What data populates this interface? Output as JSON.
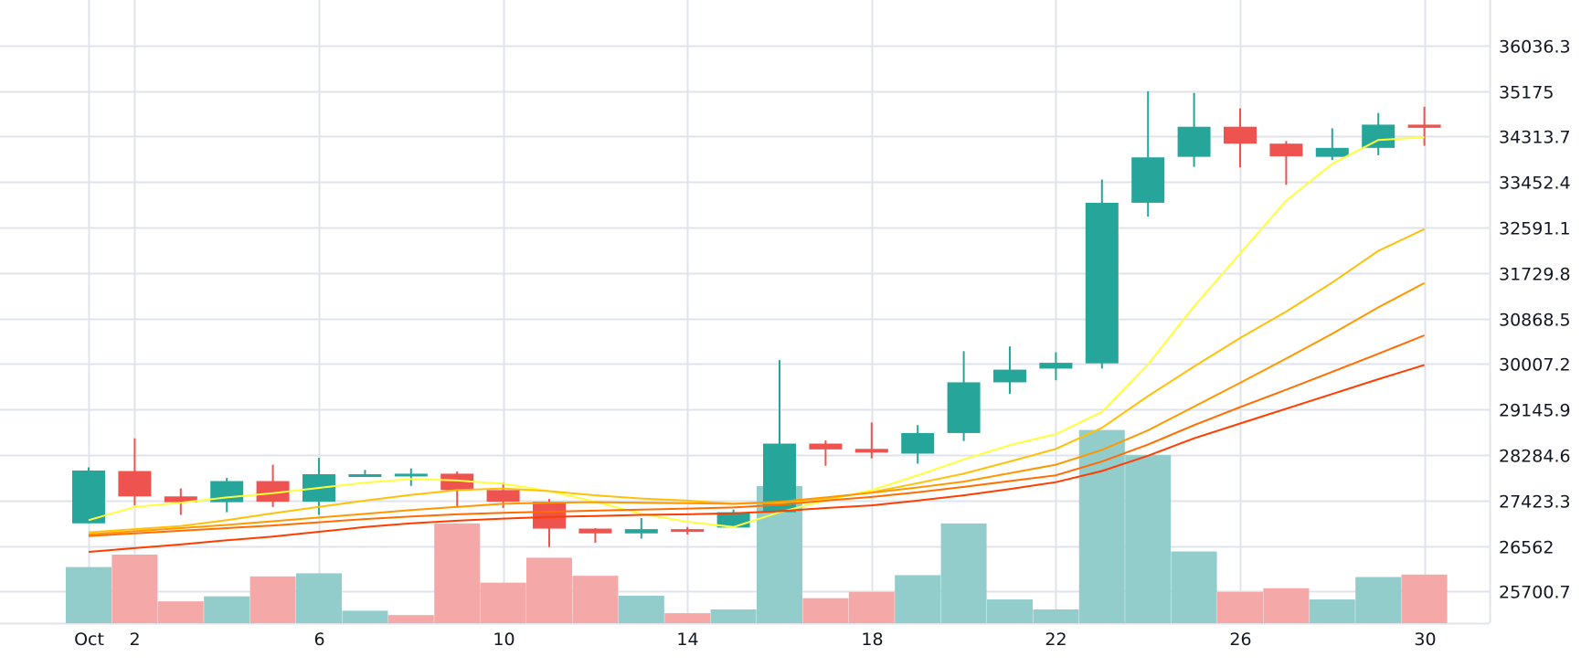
{
  "chart_data": {
    "type": "candlestick",
    "title": "",
    "x_axis": {
      "tick_labels": [
        {
          "day": 1,
          "label": "Oct"
        },
        {
          "day": 2,
          "label": "2"
        },
        {
          "day": 6,
          "label": "6"
        },
        {
          "day": 10,
          "label": "10"
        },
        {
          "day": 14,
          "label": "14"
        },
        {
          "day": 18,
          "label": "18"
        },
        {
          "day": 22,
          "label": "22"
        },
        {
          "day": 26,
          "label": "26"
        },
        {
          "day": 30,
          "label": "30"
        }
      ],
      "range": [
        1,
        30
      ]
    },
    "y_axis": {
      "tick_labels": [
        "36036.3",
        "35175",
        "34313.7",
        "33452.4",
        "32591.1",
        "31729.8",
        "30868.5",
        "30007.2",
        "29145.9",
        "28284.6",
        "27423.3",
        "26562",
        "25700.7"
      ],
      "range": [
        25100,
        36900
      ],
      "position": "right"
    },
    "grid": true,
    "colors": {
      "up": "#26a69a",
      "down": "#ef5350",
      "volume_up": "#92cccb",
      "volume_down": "#f4a9a8",
      "grid": "#e0e3eb",
      "ma": [
        "#ffff3b",
        "#ffc107",
        "#ff9800",
        "#ff6d00",
        "#ff3d00"
      ]
    },
    "candles": [
      {
        "day": 1,
        "open": 26990,
        "high": 28050,
        "low": 26990,
        "close": 27990
      },
      {
        "day": 2,
        "open": 27980,
        "high": 28600,
        "low": 27330,
        "close": 27500
      },
      {
        "day": 3,
        "open": 27500,
        "high": 27650,
        "low": 27150,
        "close": 27390
      },
      {
        "day": 4,
        "open": 27390,
        "high": 27850,
        "low": 27200,
        "close": 27790
      },
      {
        "day": 5,
        "open": 27790,
        "high": 28100,
        "low": 27300,
        "close": 27400
      },
      {
        "day": 6,
        "open": 27400,
        "high": 28230,
        "low": 27150,
        "close": 27920
      },
      {
        "day": 7,
        "open": 27920,
        "high": 28000,
        "low": 27880,
        "close": 27920
      },
      {
        "day": 8,
        "open": 27930,
        "high": 28030,
        "low": 27700,
        "close": 27930
      },
      {
        "day": 9,
        "open": 27930,
        "high": 27970,
        "low": 27300,
        "close": 27620
      },
      {
        "day": 10,
        "open": 27620,
        "high": 27760,
        "low": 27280,
        "close": 27400
      },
      {
        "day": 11,
        "open": 27400,
        "high": 27450,
        "low": 26540,
        "close": 26890
      },
      {
        "day": 12,
        "open": 26890,
        "high": 26900,
        "low": 26620,
        "close": 26800
      },
      {
        "day": 13,
        "open": 26800,
        "high": 27090,
        "low": 26700,
        "close": 26880
      },
      {
        "day": 14,
        "open": 26880,
        "high": 26920,
        "low": 26780,
        "close": 26860
      },
      {
        "day": 15,
        "open": 26910,
        "high": 27250,
        "low": 26910,
        "close": 27200
      },
      {
        "day": 16,
        "open": 27200,
        "high": 30080,
        "low": 27200,
        "close": 28500
      },
      {
        "day": 17,
        "open": 28500,
        "high": 28560,
        "low": 28080,
        "close": 28390
      },
      {
        "day": 18,
        "open": 28400,
        "high": 28900,
        "low": 28220,
        "close": 28330
      },
      {
        "day": 19,
        "open": 28310,
        "high": 28850,
        "low": 28120,
        "close": 28700
      },
      {
        "day": 20,
        "open": 28700,
        "high": 30250,
        "low": 28550,
        "close": 29660
      },
      {
        "day": 21,
        "open": 29660,
        "high": 30340,
        "low": 29440,
        "close": 29900
      },
      {
        "day": 22,
        "open": 29920,
        "high": 30230,
        "low": 29700,
        "close": 30030
      },
      {
        "day": 23,
        "open": 30020,
        "high": 33500,
        "low": 29920,
        "close": 33060
      },
      {
        "day": 24,
        "open": 33060,
        "high": 35170,
        "low": 32800,
        "close": 33920
      },
      {
        "day": 25,
        "open": 33930,
        "high": 35140,
        "low": 33740,
        "close": 34500
      },
      {
        "day": 26,
        "open": 34500,
        "high": 34850,
        "low": 33730,
        "close": 34180
      },
      {
        "day": 27,
        "open": 34180,
        "high": 34230,
        "low": 33400,
        "close": 33940
      },
      {
        "day": 28,
        "open": 33930,
        "high": 34470,
        "low": 33870,
        "close": 34100
      },
      {
        "day": 29,
        "open": 34100,
        "high": 34760,
        "low": 33960,
        "close": 34540
      },
      {
        "day": 30,
        "open": 34540,
        "high": 34880,
        "low": 34140,
        "close": 34480
      }
    ],
    "volume_bars": [
      {
        "day": 1,
        "direction": "up",
        "level": 0.09
      },
      {
        "day": 2,
        "direction": "down",
        "level": 0.11
      },
      {
        "day": 3,
        "direction": "down",
        "level": 0.035
      },
      {
        "day": 4,
        "direction": "up",
        "level": 0.043
      },
      {
        "day": 5,
        "direction": "down",
        "level": 0.075
      },
      {
        "day": 6,
        "direction": "up",
        "level": 0.08
      },
      {
        "day": 7,
        "direction": "up",
        "level": 0.02
      },
      {
        "day": 8,
        "direction": "down",
        "level": 0.013
      },
      {
        "day": 9,
        "direction": "down",
        "level": 0.16
      },
      {
        "day": 10,
        "direction": "down",
        "level": 0.065
      },
      {
        "day": 11,
        "direction": "down",
        "level": 0.105
      },
      {
        "day": 12,
        "direction": "down",
        "level": 0.076
      },
      {
        "day": 13,
        "direction": "up",
        "level": 0.044
      },
      {
        "day": 14,
        "direction": "down",
        "level": 0.016
      },
      {
        "day": 15,
        "direction": "up",
        "level": 0.022
      },
      {
        "day": 16,
        "direction": "up",
        "level": 0.22
      },
      {
        "day": 17,
        "direction": "down",
        "level": 0.04
      },
      {
        "day": 18,
        "direction": "down",
        "level": 0.05
      },
      {
        "day": 19,
        "direction": "up",
        "level": 0.077
      },
      {
        "day": 20,
        "direction": "up",
        "level": 0.16
      },
      {
        "day": 21,
        "direction": "up",
        "level": 0.038
      },
      {
        "day": 22,
        "direction": "up",
        "level": 0.022
      },
      {
        "day": 23,
        "direction": "up",
        "level": 0.31
      },
      {
        "day": 24,
        "direction": "up",
        "level": 0.27
      },
      {
        "day": 25,
        "direction": "up",
        "level": 0.115
      },
      {
        "day": 26,
        "direction": "down",
        "level": 0.05
      },
      {
        "day": 27,
        "direction": "down",
        "level": 0.056
      },
      {
        "day": 28,
        "direction": "up",
        "level": 0.038
      },
      {
        "day": 29,
        "direction": "up",
        "level": 0.074
      },
      {
        "day": 30,
        "direction": "down",
        "level": 0.078
      }
    ],
    "moving_averages": [
      {
        "values": [
          [
            1,
            27050
          ],
          [
            2,
            27300
          ],
          [
            3,
            27380
          ],
          [
            4,
            27480
          ],
          [
            5,
            27560
          ],
          [
            6,
            27660
          ],
          [
            7,
            27760
          ],
          [
            8,
            27830
          ],
          [
            9,
            27800
          ],
          [
            10,
            27740
          ],
          [
            11,
            27600
          ],
          [
            12,
            27400
          ],
          [
            13,
            27170
          ],
          [
            14,
            27020
          ],
          [
            15,
            26920
          ],
          [
            16,
            27200
          ],
          [
            17,
            27420
          ],
          [
            18,
            27620
          ],
          [
            19,
            27900
          ],
          [
            20,
            28200
          ],
          [
            21,
            28470
          ],
          [
            22,
            28680
          ],
          [
            23,
            29100
          ],
          [
            24,
            30000
          ],
          [
            25,
            31100
          ],
          [
            26,
            32100
          ],
          [
            27,
            33100
          ],
          [
            28,
            33800
          ],
          [
            29,
            34250
          ],
          [
            30,
            34300
          ]
        ]
      },
      {
        "values": [
          [
            1,
            26820
          ],
          [
            2,
            26880
          ],
          [
            3,
            26940
          ],
          [
            4,
            27050
          ],
          [
            5,
            27180
          ],
          [
            6,
            27300
          ],
          [
            7,
            27420
          ],
          [
            8,
            27530
          ],
          [
            9,
            27620
          ],
          [
            10,
            27650
          ],
          [
            11,
            27600
          ],
          [
            12,
            27520
          ],
          [
            13,
            27460
          ],
          [
            14,
            27420
          ],
          [
            15,
            27360
          ],
          [
            16,
            27380
          ],
          [
            17,
            27460
          ],
          [
            18,
            27580
          ],
          [
            19,
            27750
          ],
          [
            20,
            27930
          ],
          [
            21,
            28160
          ],
          [
            22,
            28400
          ],
          [
            23,
            28800
          ],
          [
            24,
            29400
          ],
          [
            25,
            29960
          ],
          [
            26,
            30500
          ],
          [
            27,
            31000
          ],
          [
            28,
            31550
          ],
          [
            29,
            32150
          ],
          [
            30,
            32560
          ]
        ]
      },
      {
        "values": [
          [
            1,
            26780
          ],
          [
            2,
            26840
          ],
          [
            3,
            26900
          ],
          [
            4,
            26960
          ],
          [
            5,
            27030
          ],
          [
            6,
            27100
          ],
          [
            7,
            27170
          ],
          [
            8,
            27240
          ],
          [
            9,
            27300
          ],
          [
            10,
            27360
          ],
          [
            11,
            27380
          ],
          [
            12,
            27390
          ],
          [
            13,
            27380
          ],
          [
            14,
            27370
          ],
          [
            15,
            27360
          ],
          [
            16,
            27400
          ],
          [
            17,
            27480
          ],
          [
            18,
            27570
          ],
          [
            19,
            27670
          ],
          [
            20,
            27780
          ],
          [
            21,
            27940
          ],
          [
            22,
            28100
          ],
          [
            23,
            28380
          ],
          [
            24,
            28750
          ],
          [
            25,
            29200
          ],
          [
            26,
            29650
          ],
          [
            27,
            30110
          ],
          [
            28,
            30580
          ],
          [
            29,
            31080
          ],
          [
            30,
            31540
          ]
        ]
      },
      {
        "values": [
          [
            1,
            26750
          ],
          [
            2,
            26800
          ],
          [
            3,
            26850
          ],
          [
            4,
            26900
          ],
          [
            5,
            26950
          ],
          [
            6,
            27010
          ],
          [
            7,
            27070
          ],
          [
            8,
            27120
          ],
          [
            9,
            27160
          ],
          [
            10,
            27190
          ],
          [
            11,
            27210
          ],
          [
            12,
            27230
          ],
          [
            13,
            27250
          ],
          [
            14,
            27270
          ],
          [
            15,
            27290
          ],
          [
            16,
            27340
          ],
          [
            17,
            27420
          ],
          [
            18,
            27490
          ],
          [
            19,
            27580
          ],
          [
            20,
            27680
          ],
          [
            21,
            27790
          ],
          [
            22,
            27900
          ],
          [
            23,
            28160
          ],
          [
            24,
            28480
          ],
          [
            25,
            28850
          ],
          [
            26,
            29190
          ],
          [
            27,
            29520
          ],
          [
            28,
            29860
          ],
          [
            29,
            30200
          ],
          [
            30,
            30550
          ]
        ]
      },
      {
        "values": [
          [
            1,
            26450
          ],
          [
            2,
            26520
          ],
          [
            3,
            26590
          ],
          [
            4,
            26670
          ],
          [
            5,
            26740
          ],
          [
            6,
            26830
          ],
          [
            7,
            26920
          ],
          [
            8,
            26990
          ],
          [
            9,
            27040
          ],
          [
            10,
            27080
          ],
          [
            11,
            27110
          ],
          [
            12,
            27130
          ],
          [
            13,
            27150
          ],
          [
            14,
            27160
          ],
          [
            15,
            27180
          ],
          [
            16,
            27220
          ],
          [
            17,
            27280
          ],
          [
            18,
            27330
          ],
          [
            19,
            27420
          ],
          [
            20,
            27520
          ],
          [
            21,
            27640
          ],
          [
            22,
            27770
          ],
          [
            23,
            27980
          ],
          [
            24,
            28270
          ],
          [
            25,
            28600
          ],
          [
            26,
            28880
          ],
          [
            27,
            29160
          ],
          [
            28,
            29440
          ],
          [
            29,
            29720
          ],
          [
            30,
            29990
          ]
        ]
      }
    ]
  }
}
